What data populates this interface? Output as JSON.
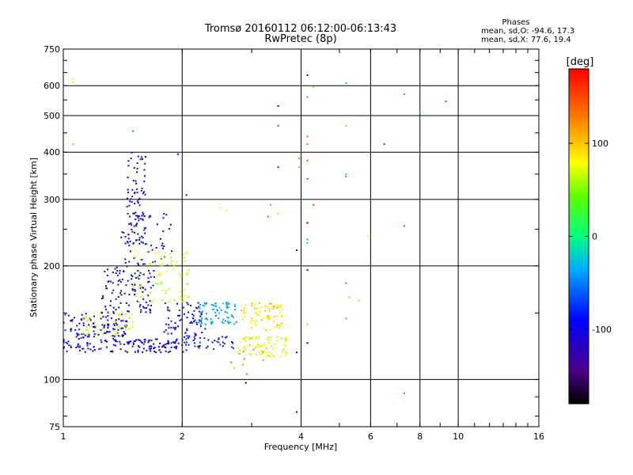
{
  "chart_data": {
    "type": "scatter",
    "title": "Tromsø 20160112 06:12:00-06:13:43",
    "subtitle": "RwPretec (8p)",
    "xlabel": "Frequency [MHz]",
    "ylabel": "Stationary phase Virtual Height [km]",
    "x_scale": "log",
    "y_scale": "log",
    "xlim": [
      1,
      16
    ],
    "ylim": [
      75,
      750
    ],
    "x_ticks": [
      1,
      2,
      4,
      6,
      8,
      10,
      16
    ],
    "x_tick_labels": [
      "1",
      "2",
      "4",
      "6",
      "8",
      "10",
      "16"
    ],
    "y_ticks": [
      75,
      100,
      200,
      300,
      400,
      500,
      600,
      750
    ],
    "y_tick_labels": [
      "75",
      "100",
      "200",
      "300",
      "400",
      "500",
      "600",
      "750"
    ],
    "grid": true,
    "phase_info": {
      "heading": "Phases",
      "line_o": "mean, sd,O: -94.6, 17.3",
      "line_x": "mean, sd,X:  77.6, 19.4"
    },
    "colorbar": {
      "unit_label": "[deg]",
      "range": [
        -180,
        180
      ],
      "ticks": [
        100,
        0,
        -100
      ],
      "tick_labels": [
        "100",
        "0",
        "-100"
      ]
    },
    "clusters": [
      {
        "f": [
          1.0,
          1.45
        ],
        "h": [
          118,
          150
        ],
        "phase": -95,
        "count": 160
      },
      {
        "f": [
          1.25,
          1.7
        ],
        "h": [
          150,
          200
        ],
        "phase": -100,
        "count": 110
      },
      {
        "f": [
          1.45,
          1.62
        ],
        "h": [
          200,
          400
        ],
        "phase": -105,
        "count": 90
      },
      {
        "f": [
          1.4,
          1.9
        ],
        "h": [
          200,
          280
        ],
        "phase": -92,
        "count": 50
      },
      {
        "f": [
          1.45,
          2.05
        ],
        "h": [
          118,
          128
        ],
        "phase": -100,
        "count": 90
      },
      {
        "f": [
          1.1,
          1.5
        ],
        "h": [
          130,
          150
        ],
        "phase": 75,
        "count": 45
      },
      {
        "f": [
          1.5,
          2.1
        ],
        "h": [
          160,
          220
        ],
        "phase": 70,
        "count": 80
      },
      {
        "f": [
          1.8,
          2.3
        ],
        "h": [
          130,
          160
        ],
        "phase": -92,
        "count": 70
      },
      {
        "f": [
          2.2,
          2.75
        ],
        "h": [
          140,
          160
        ],
        "phase": -35,
        "count": 70
      },
      {
        "f": [
          2.0,
          2.7
        ],
        "h": [
          120,
          130
        ],
        "phase": -85,
        "count": 40
      },
      {
        "f": [
          2.8,
          3.6
        ],
        "h": [
          135,
          160
        ],
        "phase": 90,
        "count": 80
      },
      {
        "f": [
          2.75,
          3.7
        ],
        "h": [
          115,
          130
        ],
        "phase": 80,
        "count": 75
      },
      {
        "f": [
          2.6,
          3.3
        ],
        "h": [
          100,
          120
        ],
        "phase": 120,
        "count": 10
      }
    ],
    "points": [
      {
        "f": 1.06,
        "h": 625,
        "phase": 80
      },
      {
        "f": 1.06,
        "h": 612,
        "phase": 70
      },
      {
        "f": 1.06,
        "h": 420,
        "phase": 110
      },
      {
        "f": 1.5,
        "h": 455,
        "phase": -40
      },
      {
        "f": 1.95,
        "h": 395,
        "phase": -90
      },
      {
        "f": 2.05,
        "h": 308,
        "phase": -90
      },
      {
        "f": 3.5,
        "h": 530,
        "phase": -90
      },
      {
        "f": 3.5,
        "h": 470,
        "phase": -60
      },
      {
        "f": 3.5,
        "h": 365,
        "phase": -80
      },
      {
        "f": 3.5,
        "h": 275,
        "phase": 100
      },
      {
        "f": 3.35,
        "h": 290,
        "phase": 120
      },
      {
        "f": 4.15,
        "h": 640,
        "phase": -90
      },
      {
        "f": 4.3,
        "h": 595,
        "phase": 100
      },
      {
        "f": 4.15,
        "h": 560,
        "phase": -30
      },
      {
        "f": 4.15,
        "h": 440,
        "phase": 140
      },
      {
        "f": 4.15,
        "h": 420,
        "phase": 130
      },
      {
        "f": 4.15,
        "h": 380,
        "phase": 150
      },
      {
        "f": 4.15,
        "h": 340,
        "phase": 160
      },
      {
        "f": 4.3,
        "h": 290,
        "phase": 150
      },
      {
        "f": 4.15,
        "h": 260,
        "phase": -90
      },
      {
        "f": 4.15,
        "h": 235,
        "phase": -40
      },
      {
        "f": 4.15,
        "h": 230,
        "phase": -20
      },
      {
        "f": 4.15,
        "h": 195,
        "phase": -90
      },
      {
        "f": 4.15,
        "h": 140,
        "phase": 110
      },
      {
        "f": 4.15,
        "h": 125,
        "phase": -90
      },
      {
        "f": 3.95,
        "h": 385,
        "phase": 130
      },
      {
        "f": 3.95,
        "h": 365,
        "phase": 120
      },
      {
        "f": 3.9,
        "h": 220,
        "phase": -90
      },
      {
        "f": 3.9,
        "h": 82,
        "phase": -90
      },
      {
        "f": 3.9,
        "h": 118,
        "phase": -90
      },
      {
        "f": 5.2,
        "h": 610,
        "phase": -30
      },
      {
        "f": 5.2,
        "h": 470,
        "phase": 110
      },
      {
        "f": 5.2,
        "h": 350,
        "phase": -10
      },
      {
        "f": 5.2,
        "h": 345,
        "phase": -40
      },
      {
        "f": 5.2,
        "h": 180,
        "phase": -40
      },
      {
        "f": 5.3,
        "h": 165,
        "phase": 100
      },
      {
        "f": 5.6,
        "h": 162,
        "phase": 110
      },
      {
        "f": 5.2,
        "h": 145,
        "phase": 130
      },
      {
        "f": 5.9,
        "h": 240,
        "phase": 80
      },
      {
        "f": 6.5,
        "h": 420,
        "phase": -60
      },
      {
        "f": 7.3,
        "h": 570,
        "phase": 140
      },
      {
        "f": 7.3,
        "h": 255,
        "phase": 150
      },
      {
        "f": 7.3,
        "h": 92,
        "phase": 150
      },
      {
        "f": 8.0,
        "h": 510,
        "phase": -20
      },
      {
        "f": 9.3,
        "h": 545,
        "phase": -50
      },
      {
        "f": 3.3,
        "h": 270,
        "phase": 150
      },
      {
        "f": 2.9,
        "h": 98,
        "phase": -90
      },
      {
        "f": 2.6,
        "h": 280,
        "phase": 80
      },
      {
        "f": 2.5,
        "h": 285,
        "phase": 90
      }
    ]
  }
}
